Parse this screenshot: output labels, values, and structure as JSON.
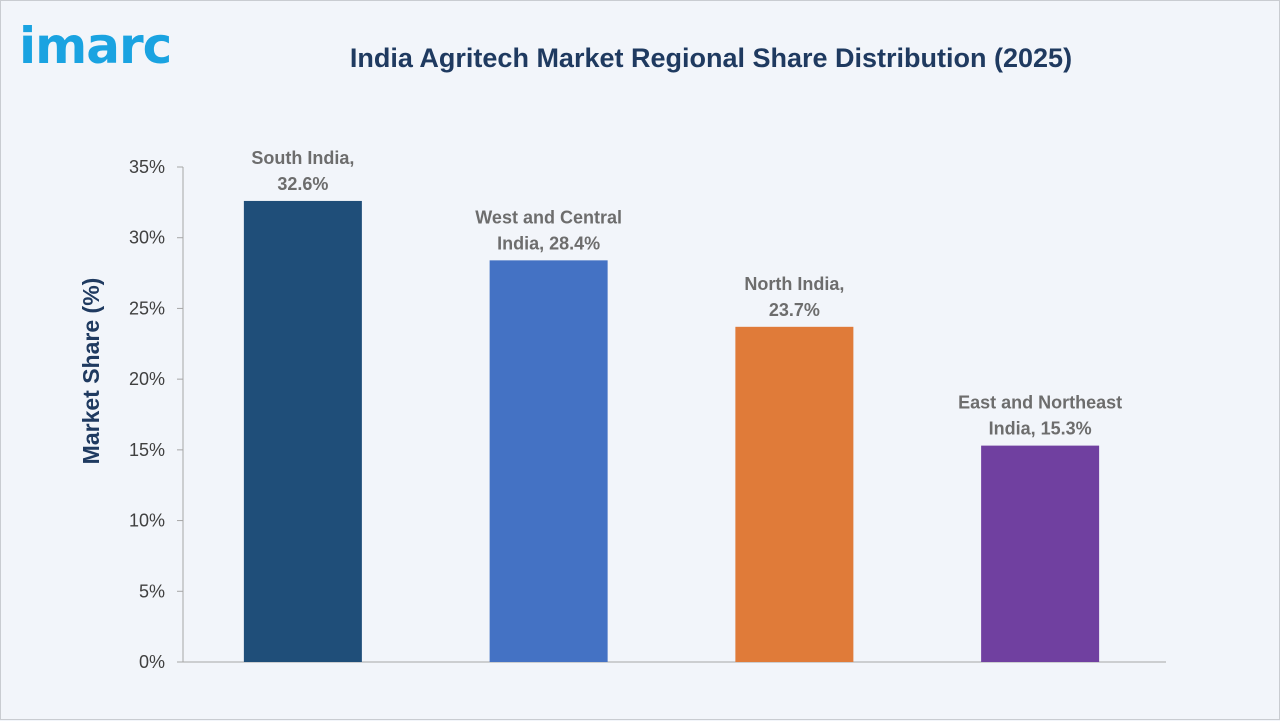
{
  "brand": {
    "logo_text": "imarc",
    "logo_color": "#1aa3e1"
  },
  "chart_data": {
    "type": "bar",
    "title": "India Agritech Market Regional Share Distribution (2025)",
    "xlabel": "",
    "ylabel": "Market Share (%)",
    "ylim": [
      0,
      35
    ],
    "yticks": [
      0,
      5,
      10,
      15,
      20,
      25,
      30,
      35
    ],
    "ytick_labels": [
      "0%",
      "5%",
      "10%",
      "15%",
      "20%",
      "25%",
      "30%",
      "35%"
    ],
    "categories": [
      "South India",
      "West and Central India",
      "North India",
      "East and Northeast India"
    ],
    "values": [
      32.6,
      28.4,
      23.7,
      15.3
    ],
    "data_labels": [
      [
        "South India,",
        "32.6%"
      ],
      [
        "West and Central",
        "India, 28.4%"
      ],
      [
        "North India,",
        "23.7%"
      ],
      [
        "East and Northeast",
        "India, 15.3%"
      ]
    ],
    "colors": [
      "#1f4e79",
      "#4472c4",
      "#e07b39",
      "#7040a0"
    ],
    "grid": false,
    "legend": "none"
  }
}
